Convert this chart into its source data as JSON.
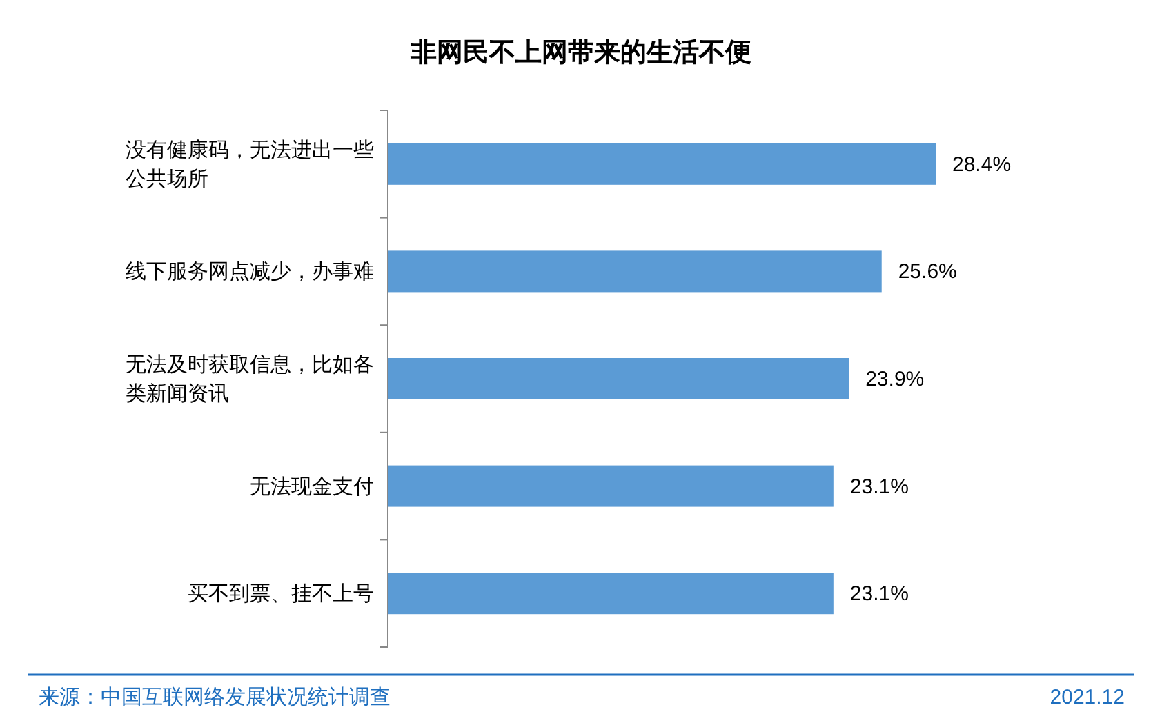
{
  "chart_data": {
    "type": "bar",
    "orientation": "horizontal",
    "title": "非网民不上网带来的生活不便",
    "categories": [
      "没有健康码，无法进出一些公共场所",
      "线下服务网点减少，办事难",
      "无法及时获取信息，比如各类新闻资讯",
      "无法现金支付",
      "买不到票、挂不上号"
    ],
    "values": [
      28.4,
      25.6,
      23.9,
      23.1,
      23.1
    ],
    "value_labels": [
      "28.4%",
      "25.6%",
      "23.9%",
      "23.1%",
      "23.1%"
    ],
    "color": "#5b9bd5",
    "annotations": [
      "来源：中国互联网络发展状况统计调查",
      "2021.12"
    ]
  }
}
